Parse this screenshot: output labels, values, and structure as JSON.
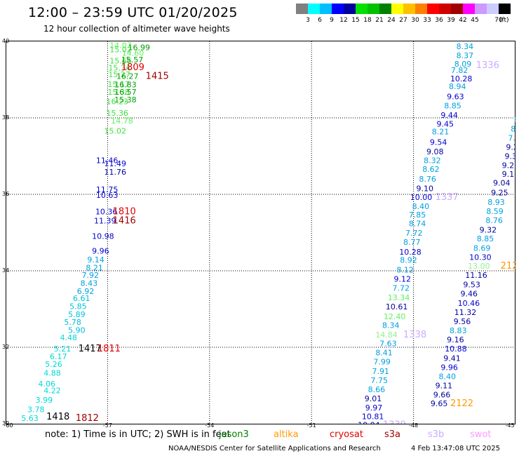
{
  "header": {
    "title": "12:00 – 23:59 UTC 01/20/2025",
    "subtitle": "12 hour collection of altimeter wave heights"
  },
  "colorbar": {
    "colors": [
      "#808080",
      "#00ffff",
      "#00bfff",
      "#0000ff",
      "#0000a0",
      "#00e000",
      "#00c000",
      "#008000",
      "#ffff00",
      "#ffc000",
      "#ff8000",
      "#ff0000",
      "#d00000",
      "#a00000",
      "#ff00ff",
      "#cc99ff",
      "#ccccff",
      "#000000"
    ],
    "ticks": [
      "3",
      "6",
      "9",
      "12",
      "15",
      "18",
      "21",
      "24",
      "27",
      "30",
      "33",
      "36",
      "39",
      "42",
      "45",
      "70"
    ],
    "unit": "(ft)"
  },
  "axes": {
    "y_labels": [
      "40",
      "38",
      "36",
      "34",
      "32",
      "30"
    ],
    "x_labels": [
      "-60",
      "-57",
      "-54",
      "-51",
      "-48",
      "-45"
    ]
  },
  "track_labels": [
    {
      "text": "14.07",
      "lon": -56.94,
      "lat": 39.9,
      "color": "#60f060"
    },
    {
      "text": "15.02",
      "lon": -56.94,
      "lat": 39.79,
      "color": "#40e040"
    },
    {
      "text": "16.99",
      "lon": -56.4,
      "lat": 39.84,
      "color": "#00a000"
    },
    {
      "text": "14.60",
      "lon": -56.58,
      "lat": 39.7,
      "color": "#60f060"
    },
    {
      "text": "15.66",
      "lon": -56.94,
      "lat": 39.5,
      "color": "#40e040"
    },
    {
      "text": "15.57",
      "lon": -56.6,
      "lat": 39.52,
      "color": "#00a000"
    },
    {
      "text": "15.34",
      "lon": -56.98,
      "lat": 39.31,
      "color": "#40e040"
    },
    {
      "text": "1809",
      "lon": -56.6,
      "lat": 39.32,
      "color": "#e00000"
    },
    {
      "text": "15.27",
      "lon": -56.98,
      "lat": 39.14,
      "color": "#40e040"
    },
    {
      "text": "16.27",
      "lon": -56.74,
      "lat": 39.09,
      "color": "#00a000"
    },
    {
      "text": "1415",
      "lon": -55.88,
      "lat": 39.09,
      "color": "#a00000"
    },
    {
      "text": "15.17",
      "lon": -57.0,
      "lat": 38.88,
      "color": "#40e040"
    },
    {
      "text": "16.83",
      "lon": -56.8,
      "lat": 38.87,
      "color": "#00a000"
    },
    {
      "text": "15.38",
      "lon": -57.0,
      "lat": 38.68,
      "color": "#40e040"
    },
    {
      "text": "16.57",
      "lon": -56.8,
      "lat": 38.68,
      "color": "#00a000"
    },
    {
      "text": "16.23",
      "lon": -57.04,
      "lat": 38.43,
      "color": "#40e040"
    },
    {
      "text": "15.38",
      "lon": -56.8,
      "lat": 38.48,
      "color": "#00a000"
    },
    {
      "text": "15.36",
      "lon": -57.04,
      "lat": 38.13,
      "color": "#40e040"
    },
    {
      "text": "14.78",
      "lon": -56.9,
      "lat": 37.93,
      "color": "#60f060"
    },
    {
      "text": "15.02",
      "lon": -57.1,
      "lat": 37.66,
      "color": "#40e040"
    },
    {
      "text": "11.46",
      "lon": -57.34,
      "lat": 36.89,
      "color": "#0000d0"
    },
    {
      "text": "11.49",
      "lon": -57.1,
      "lat": 36.81,
      "color": "#0000d0"
    },
    {
      "text": "11.76",
      "lon": -57.1,
      "lat": 36.59,
      "color": "#0000a0"
    },
    {
      "text": "11.75",
      "lon": -57.34,
      "lat": 36.13,
      "color": "#0000d0"
    },
    {
      "text": "10.63",
      "lon": -57.34,
      "lat": 35.98,
      "color": "#0000d0"
    },
    {
      "text": "10.36",
      "lon": -57.36,
      "lat": 35.55,
      "color": "#0000d0"
    },
    {
      "text": "1810",
      "lon": -56.85,
      "lat": 35.55,
      "color": "#e00000"
    },
    {
      "text": "11.39",
      "lon": -57.4,
      "lat": 35.31,
      "color": "#0000d0"
    },
    {
      "text": "1416",
      "lon": -56.85,
      "lat": 35.31,
      "color": "#a00000"
    },
    {
      "text": "10.98",
      "lon": -57.46,
      "lat": 34.91,
      "color": "#0000d0"
    },
    {
      "text": "9.96",
      "lon": -57.46,
      "lat": 34.52,
      "color": "#0000d0"
    },
    {
      "text": "9.14",
      "lon": -57.6,
      "lat": 34.29,
      "color": "#00a0e0"
    },
    {
      "text": "8.21",
      "lon": -57.64,
      "lat": 34.08,
      "color": "#00a0e0"
    },
    {
      "text": "7.92",
      "lon": -57.76,
      "lat": 33.89,
      "color": "#00a0e0"
    },
    {
      "text": "8.43",
      "lon": -57.8,
      "lat": 33.68,
      "color": "#00a0e0"
    },
    {
      "text": "6.92",
      "lon": -57.9,
      "lat": 33.47,
      "color": "#00a0e0"
    },
    {
      "text": "6.61",
      "lon": -58.02,
      "lat": 33.28,
      "color": "#00c0e0"
    },
    {
      "text": "5.85",
      "lon": -58.12,
      "lat": 33.07,
      "color": "#00c0e0"
    },
    {
      "text": "5.89",
      "lon": -58.16,
      "lat": 32.86,
      "color": "#00c0e0"
    },
    {
      "text": "5.78",
      "lon": -58.28,
      "lat": 32.66,
      "color": "#00c0e0"
    },
    {
      "text": "5.90",
      "lon": -58.16,
      "lat": 32.45,
      "color": "#00c0e0"
    },
    {
      "text": "4.48",
      "lon": -58.4,
      "lat": 32.26,
      "color": "#00d8d8"
    },
    {
      "text": "5.21",
      "lon": -58.58,
      "lat": 31.96,
      "color": "#00d8d8"
    },
    {
      "text": "1417",
      "lon": -57.86,
      "lat": 31.96,
      "color": "#000000"
    },
    {
      "text": "1811",
      "lon": -57.3,
      "lat": 31.96,
      "color": "#e00000"
    },
    {
      "text": "6.17",
      "lon": -58.7,
      "lat": 31.76,
      "color": "#00d8d8"
    },
    {
      "text": "5.26",
      "lon": -58.84,
      "lat": 31.56,
      "color": "#00d8d8"
    },
    {
      "text": "4.88",
      "lon": -58.88,
      "lat": 31.33,
      "color": "#00d8d8"
    },
    {
      "text": "4.06",
      "lon": -59.04,
      "lat": 31.05,
      "color": "#00d8d8"
    },
    {
      "text": "4.22",
      "lon": -58.88,
      "lat": 30.87,
      "color": "#00d8d8"
    },
    {
      "text": "3.99",
      "lon": -59.12,
      "lat": 30.62,
      "color": "#00d8d8"
    },
    {
      "text": "3.78",
      "lon": -59.36,
      "lat": 30.38,
      "color": "#00d8d8"
    },
    {
      "text": "5.63",
      "lon": -59.54,
      "lat": 30.15,
      "color": "#00d8d8"
    },
    {
      "text": "1418",
      "lon": -58.8,
      "lat": 30.18,
      "color": "#000000"
    },
    {
      "text": "1812",
      "lon": -57.94,
      "lat": 30.15,
      "color": "#a00000"
    },
    {
      "text": "8.34",
      "lon": -46.74,
      "lat": 39.87,
      "color": "#00a0e0"
    },
    {
      "text": "8.37",
      "lon": -46.74,
      "lat": 39.63,
      "color": "#00a0e0"
    },
    {
      "text": "1336",
      "lon": -46.16,
      "lat": 39.38,
      "color": "#ccaaff"
    },
    {
      "text": "8.09",
      "lon": -46.8,
      "lat": 39.41,
      "color": "#00a0e0"
    },
    {
      "text": "7.82",
      "lon": -46.9,
      "lat": 39.25,
      "color": "#00a0e0"
    },
    {
      "text": "10.28",
      "lon": -46.92,
      "lat": 39.03,
      "color": "#0000d0"
    },
    {
      "text": "8.94",
      "lon": -46.96,
      "lat": 38.83,
      "color": "#00a0e0"
    },
    {
      "text": "9.63",
      "lon": -47.02,
      "lat": 38.56,
      "color": "#0000d0"
    },
    {
      "text": "8.85",
      "lon": -47.1,
      "lat": 38.32,
      "color": "#00a0e0"
    },
    {
      "text": "9.44",
      "lon": -47.2,
      "lat": 38.07,
      "color": "#0000d0"
    },
    {
      "text": "9.45",
      "lon": -47.32,
      "lat": 37.84,
      "color": "#0000d0"
    },
    {
      "text": "8.21",
      "lon": -47.46,
      "lat": 37.64,
      "color": "#00a0e0"
    },
    {
      "text": "9.54",
      "lon": -47.52,
      "lat": 37.37,
      "color": "#0000d0"
    },
    {
      "text": "9.08",
      "lon": -47.62,
      "lat": 37.12,
      "color": "#0000a0"
    },
    {
      "text": "8.32",
      "lon": -47.7,
      "lat": 36.89,
      "color": "#00a0e0"
    },
    {
      "text": "8.62",
      "lon": -47.74,
      "lat": 36.66,
      "color": "#00a0e0"
    },
    {
      "text": "8.76",
      "lon": -47.84,
      "lat": 36.4,
      "color": "#00a0e0"
    },
    {
      "text": "9.10",
      "lon": -47.92,
      "lat": 36.16,
      "color": "#0000a0"
    },
    {
      "text": "10.00",
      "lon": -48.1,
      "lat": 35.93,
      "color": "#0000d0"
    },
    {
      "text": "1337",
      "lon": -47.36,
      "lat": 35.93,
      "color": "#ccaaff"
    },
    {
      "text": "8.40",
      "lon": -48.04,
      "lat": 35.69,
      "color": "#00a0e0"
    },
    {
      "text": "7.85",
      "lon": -48.14,
      "lat": 35.47,
      "color": "#00a0e0"
    },
    {
      "text": "8.74",
      "lon": -48.14,
      "lat": 35.24,
      "color": "#00a0e0"
    },
    {
      "text": "7.72",
      "lon": -48.24,
      "lat": 34.99,
      "color": "#00a0e0"
    },
    {
      "text": "8.77",
      "lon": -48.3,
      "lat": 34.75,
      "color": "#00a0e0"
    },
    {
      "text": "10.28",
      "lon": -48.42,
      "lat": 34.5,
      "color": "#0000d0"
    },
    {
      "text": "8.92",
      "lon": -48.4,
      "lat": 34.28,
      "color": "#00a0e0"
    },
    {
      "text": "8.12",
      "lon": -48.5,
      "lat": 34.03,
      "color": "#00a0e0"
    },
    {
      "text": "9.12",
      "lon": -48.58,
      "lat": 33.79,
      "color": "#0000d0"
    },
    {
      "text": "7.72",
      "lon": -48.62,
      "lat": 33.55,
      "color": "#00a0e0"
    },
    {
      "text": "13.34",
      "lon": -48.76,
      "lat": 33.3,
      "color": "#60f060"
    },
    {
      "text": "10.61",
      "lon": -48.82,
      "lat": 33.06,
      "color": "#0000a0"
    },
    {
      "text": "12.40",
      "lon": -48.88,
      "lat": 32.81,
      "color": "#60f060"
    },
    {
      "text": "8.34",
      "lon": -48.92,
      "lat": 32.58,
      "color": "#00a0e0"
    },
    {
      "text": "14.84",
      "lon": -49.12,
      "lat": 32.33,
      "color": "#90f090"
    },
    {
      "text": "1338",
      "lon": -48.3,
      "lat": 32.33,
      "color": "#ccaaff"
    },
    {
      "text": "7.63",
      "lon": -49.0,
      "lat": 32.1,
      "color": "#00a0e0"
    },
    {
      "text": "8.41",
      "lon": -49.12,
      "lat": 31.86,
      "color": "#00a0e0"
    },
    {
      "text": "7.99",
      "lon": -49.18,
      "lat": 31.62,
      "color": "#00a0e0"
    },
    {
      "text": "7.91",
      "lon": -49.22,
      "lat": 31.38,
      "color": "#00a0e0"
    },
    {
      "text": "7.75",
      "lon": -49.26,
      "lat": 31.14,
      "color": "#00a0e0"
    },
    {
      "text": "8.66",
      "lon": -49.34,
      "lat": 30.9,
      "color": "#00a0e0"
    },
    {
      "text": "9.01",
      "lon": -49.44,
      "lat": 30.66,
      "color": "#0000a0"
    },
    {
      "text": "9.97",
      "lon": -49.42,
      "lat": 30.42,
      "color": "#0000d0"
    },
    {
      "text": "10.81",
      "lon": -49.52,
      "lat": 30.19,
      "color": "#0000d0"
    },
    {
      "text": "10.04",
      "lon": -49.64,
      "lat": 29.97,
      "color": "#0000d0"
    },
    {
      "text": "1339",
      "lon": -48.9,
      "lat": 29.97,
      "color": "#ccaaff"
    },
    {
      "text": "8",
      "lon": -45.04,
      "lat": 37.95,
      "color": "#00a0e0"
    },
    {
      "text": "8",
      "lon": -45.14,
      "lat": 37.72,
      "color": "#00a0e0"
    },
    {
      "text": "7.",
      "lon": -45.22,
      "lat": 37.48,
      "color": "#00a0e0"
    },
    {
      "text": "9.2",
      "lon": -45.28,
      "lat": 37.24,
      "color": "#0000a0"
    },
    {
      "text": "9.3",
      "lon": -45.32,
      "lat": 37.0,
      "color": "#0000a0"
    },
    {
      "text": "9.25",
      "lon": -45.4,
      "lat": 36.76,
      "color": "#0000a0"
    },
    {
      "text": "9.13",
      "lon": -45.4,
      "lat": 36.53,
      "color": "#0000a0"
    },
    {
      "text": "9.04",
      "lon": -45.66,
      "lat": 36.3,
      "color": "#0000a0"
    },
    {
      "text": "9.25",
      "lon": -45.72,
      "lat": 36.05,
      "color": "#0000a0"
    },
    {
      "text": "8.93",
      "lon": -45.82,
      "lat": 35.8,
      "color": "#00a0e0"
    },
    {
      "text": "8.59",
      "lon": -45.86,
      "lat": 35.56,
      "color": "#00a0e0"
    },
    {
      "text": "8.76",
      "lon": -45.88,
      "lat": 35.32,
      "color": "#00a0e0"
    },
    {
      "text": "9.32",
      "lon": -46.06,
      "lat": 35.07,
      "color": "#0000a0"
    },
    {
      "text": "8.85",
      "lon": -46.14,
      "lat": 34.84,
      "color": "#00a0e0"
    },
    {
      "text": "8.69",
      "lon": -46.24,
      "lat": 34.6,
      "color": "#00a0e0"
    },
    {
      "text": "10.30",
      "lon": -46.36,
      "lat": 34.36,
      "color": "#0000d0"
    },
    {
      "text": "13.00",
      "lon": -46.4,
      "lat": 34.13,
      "color": "#90f090"
    },
    {
      "text": "212",
      "lon": -45.44,
      "lat": 34.13,
      "color": "#ff9900"
    },
    {
      "text": "11.16",
      "lon": -46.48,
      "lat": 33.89,
      "color": "#0000a0"
    },
    {
      "text": "9.53",
      "lon": -46.54,
      "lat": 33.64,
      "color": "#0000a0"
    },
    {
      "text": "9.46",
      "lon": -46.62,
      "lat": 33.4,
      "color": "#0000a0"
    },
    {
      "text": "10.46",
      "lon": -46.7,
      "lat": 33.16,
      "color": "#0000d0"
    },
    {
      "text": "11.32",
      "lon": -46.8,
      "lat": 32.92,
      "color": "#0000a0"
    },
    {
      "text": "9.56",
      "lon": -46.82,
      "lat": 32.68,
      "color": "#0000a0"
    },
    {
      "text": "8.83",
      "lon": -46.94,
      "lat": 32.44,
      "color": "#00a0e0"
    },
    {
      "text": "9.16",
      "lon": -47.02,
      "lat": 32.2,
      "color": "#0000a0"
    },
    {
      "text": "10.88",
      "lon": -47.08,
      "lat": 31.96,
      "color": "#0000d0"
    },
    {
      "text": "9.41",
      "lon": -47.12,
      "lat": 31.72,
      "color": "#0000a0"
    },
    {
      "text": "9.96",
      "lon": -47.2,
      "lat": 31.48,
      "color": "#0000d0"
    },
    {
      "text": "8.40",
      "lon": -47.26,
      "lat": 31.24,
      "color": "#00a0e0"
    },
    {
      "text": "9.11",
      "lon": -47.36,
      "lat": 31.0,
      "color": "#0000a0"
    },
    {
      "text": "9.66",
      "lon": -47.42,
      "lat": 30.76,
      "color": "#0000a0"
    },
    {
      "text": "9.65",
      "lon": -47.5,
      "lat": 30.53,
      "color": "#0000a0"
    },
    {
      "text": "2122",
      "lon": -46.92,
      "lat": 30.53,
      "color": "#ff9900"
    }
  ],
  "footer": {
    "note": "note:  1) Time is in UTC;  2) SWH is in feet",
    "satellites": [
      {
        "name": "jason3",
        "color": "#008000"
      },
      {
        "name": "altika",
        "color": "#ff9900"
      },
      {
        "name": "cryosat",
        "color": "#e00000"
      },
      {
        "name": "s3a",
        "color": "#a00000"
      },
      {
        "name": "s3b",
        "color": "#ccaaff"
      },
      {
        "name": "swot",
        "color": "#ff99ff"
      }
    ],
    "credit": "NOAA/NESDIS Center for Satellite Applications and Research",
    "timestamp": "4 Feb 13:47:08 UTC 2025"
  }
}
